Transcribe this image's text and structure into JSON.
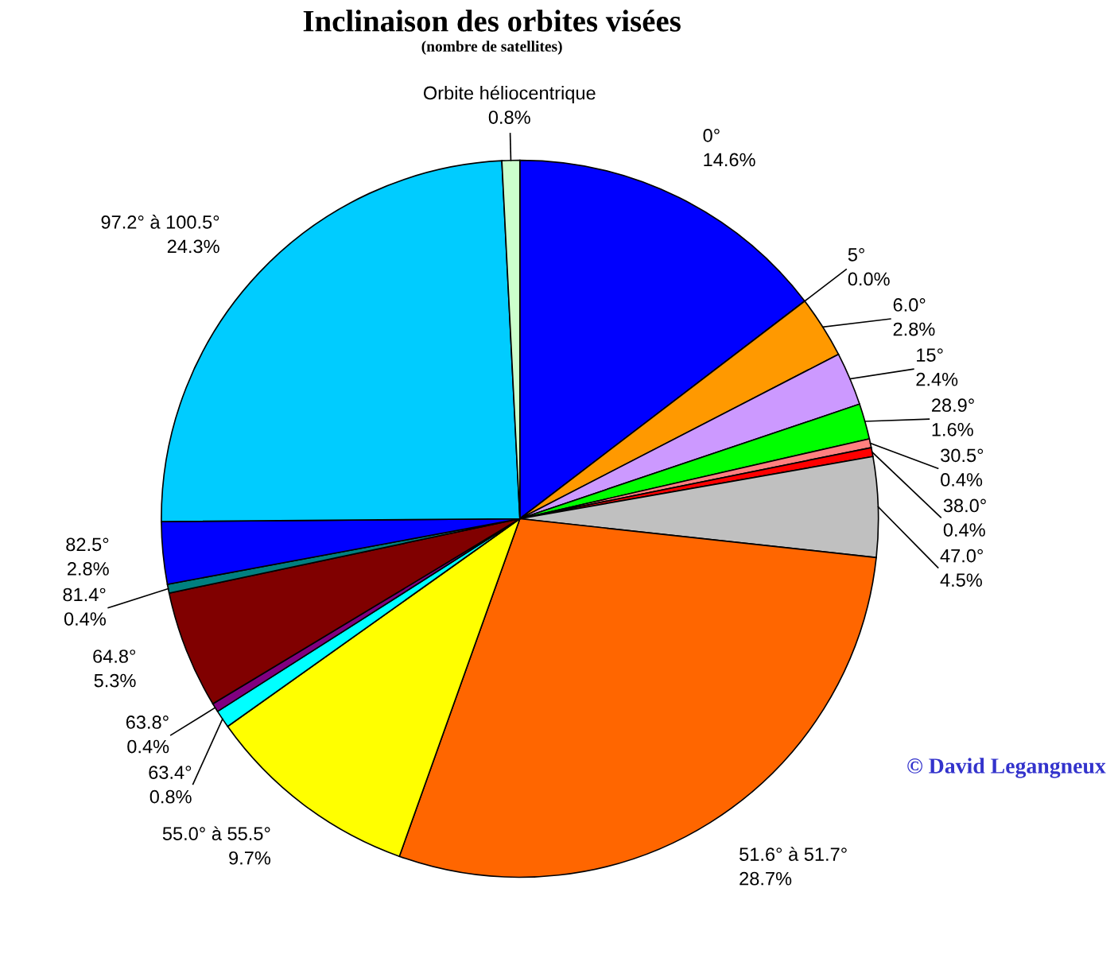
{
  "chart_data": {
    "type": "pie",
    "title": "Inclinaison des orbites visées",
    "subtitle": "(nombre de satellites)",
    "categories": [
      "0°",
      "5°",
      "6.0°",
      "15°",
      "28.9°",
      "30.5°",
      "38.0°",
      "47.0°",
      "51.6° à 51.7°",
      "55.0° à 55.5°",
      "63.4°",
      "63.8°",
      "64.8°",
      "81.4°",
      "82.5°",
      "97.2° à 100.5°",
      "Orbite héliocentrique"
    ],
    "values": [
      14.6,
      0.0,
      2.8,
      2.4,
      1.6,
      0.4,
      0.4,
      4.5,
      28.7,
      9.7,
      0.8,
      0.4,
      5.3,
      0.4,
      2.8,
      24.3,
      0.8
    ],
    "value_labels": [
      "14.6%",
      "0.0%",
      "2.8%",
      "2.4%",
      "1.6%",
      "0.4%",
      "0.4%",
      "4.5%",
      "28.7%",
      "9.7%",
      "0.8%",
      "0.4%",
      "5.3%",
      "0.4%",
      "2.8%",
      "24.3%",
      "0.8%"
    ],
    "colors": [
      "#0000ff",
      "#ffcc00",
      "#ff9900",
      "#cc99ff",
      "#00ff00",
      "#ff8080",
      "#ff0000",
      "#c0c0c0",
      "#ff6600",
      "#ffff00",
      "#00ffff",
      "#800080",
      "#800000",
      "#008080",
      "#0000ff",
      "#00ccff",
      "#ccffcc"
    ],
    "annotations": [
      "© David Legangneux"
    ]
  }
}
